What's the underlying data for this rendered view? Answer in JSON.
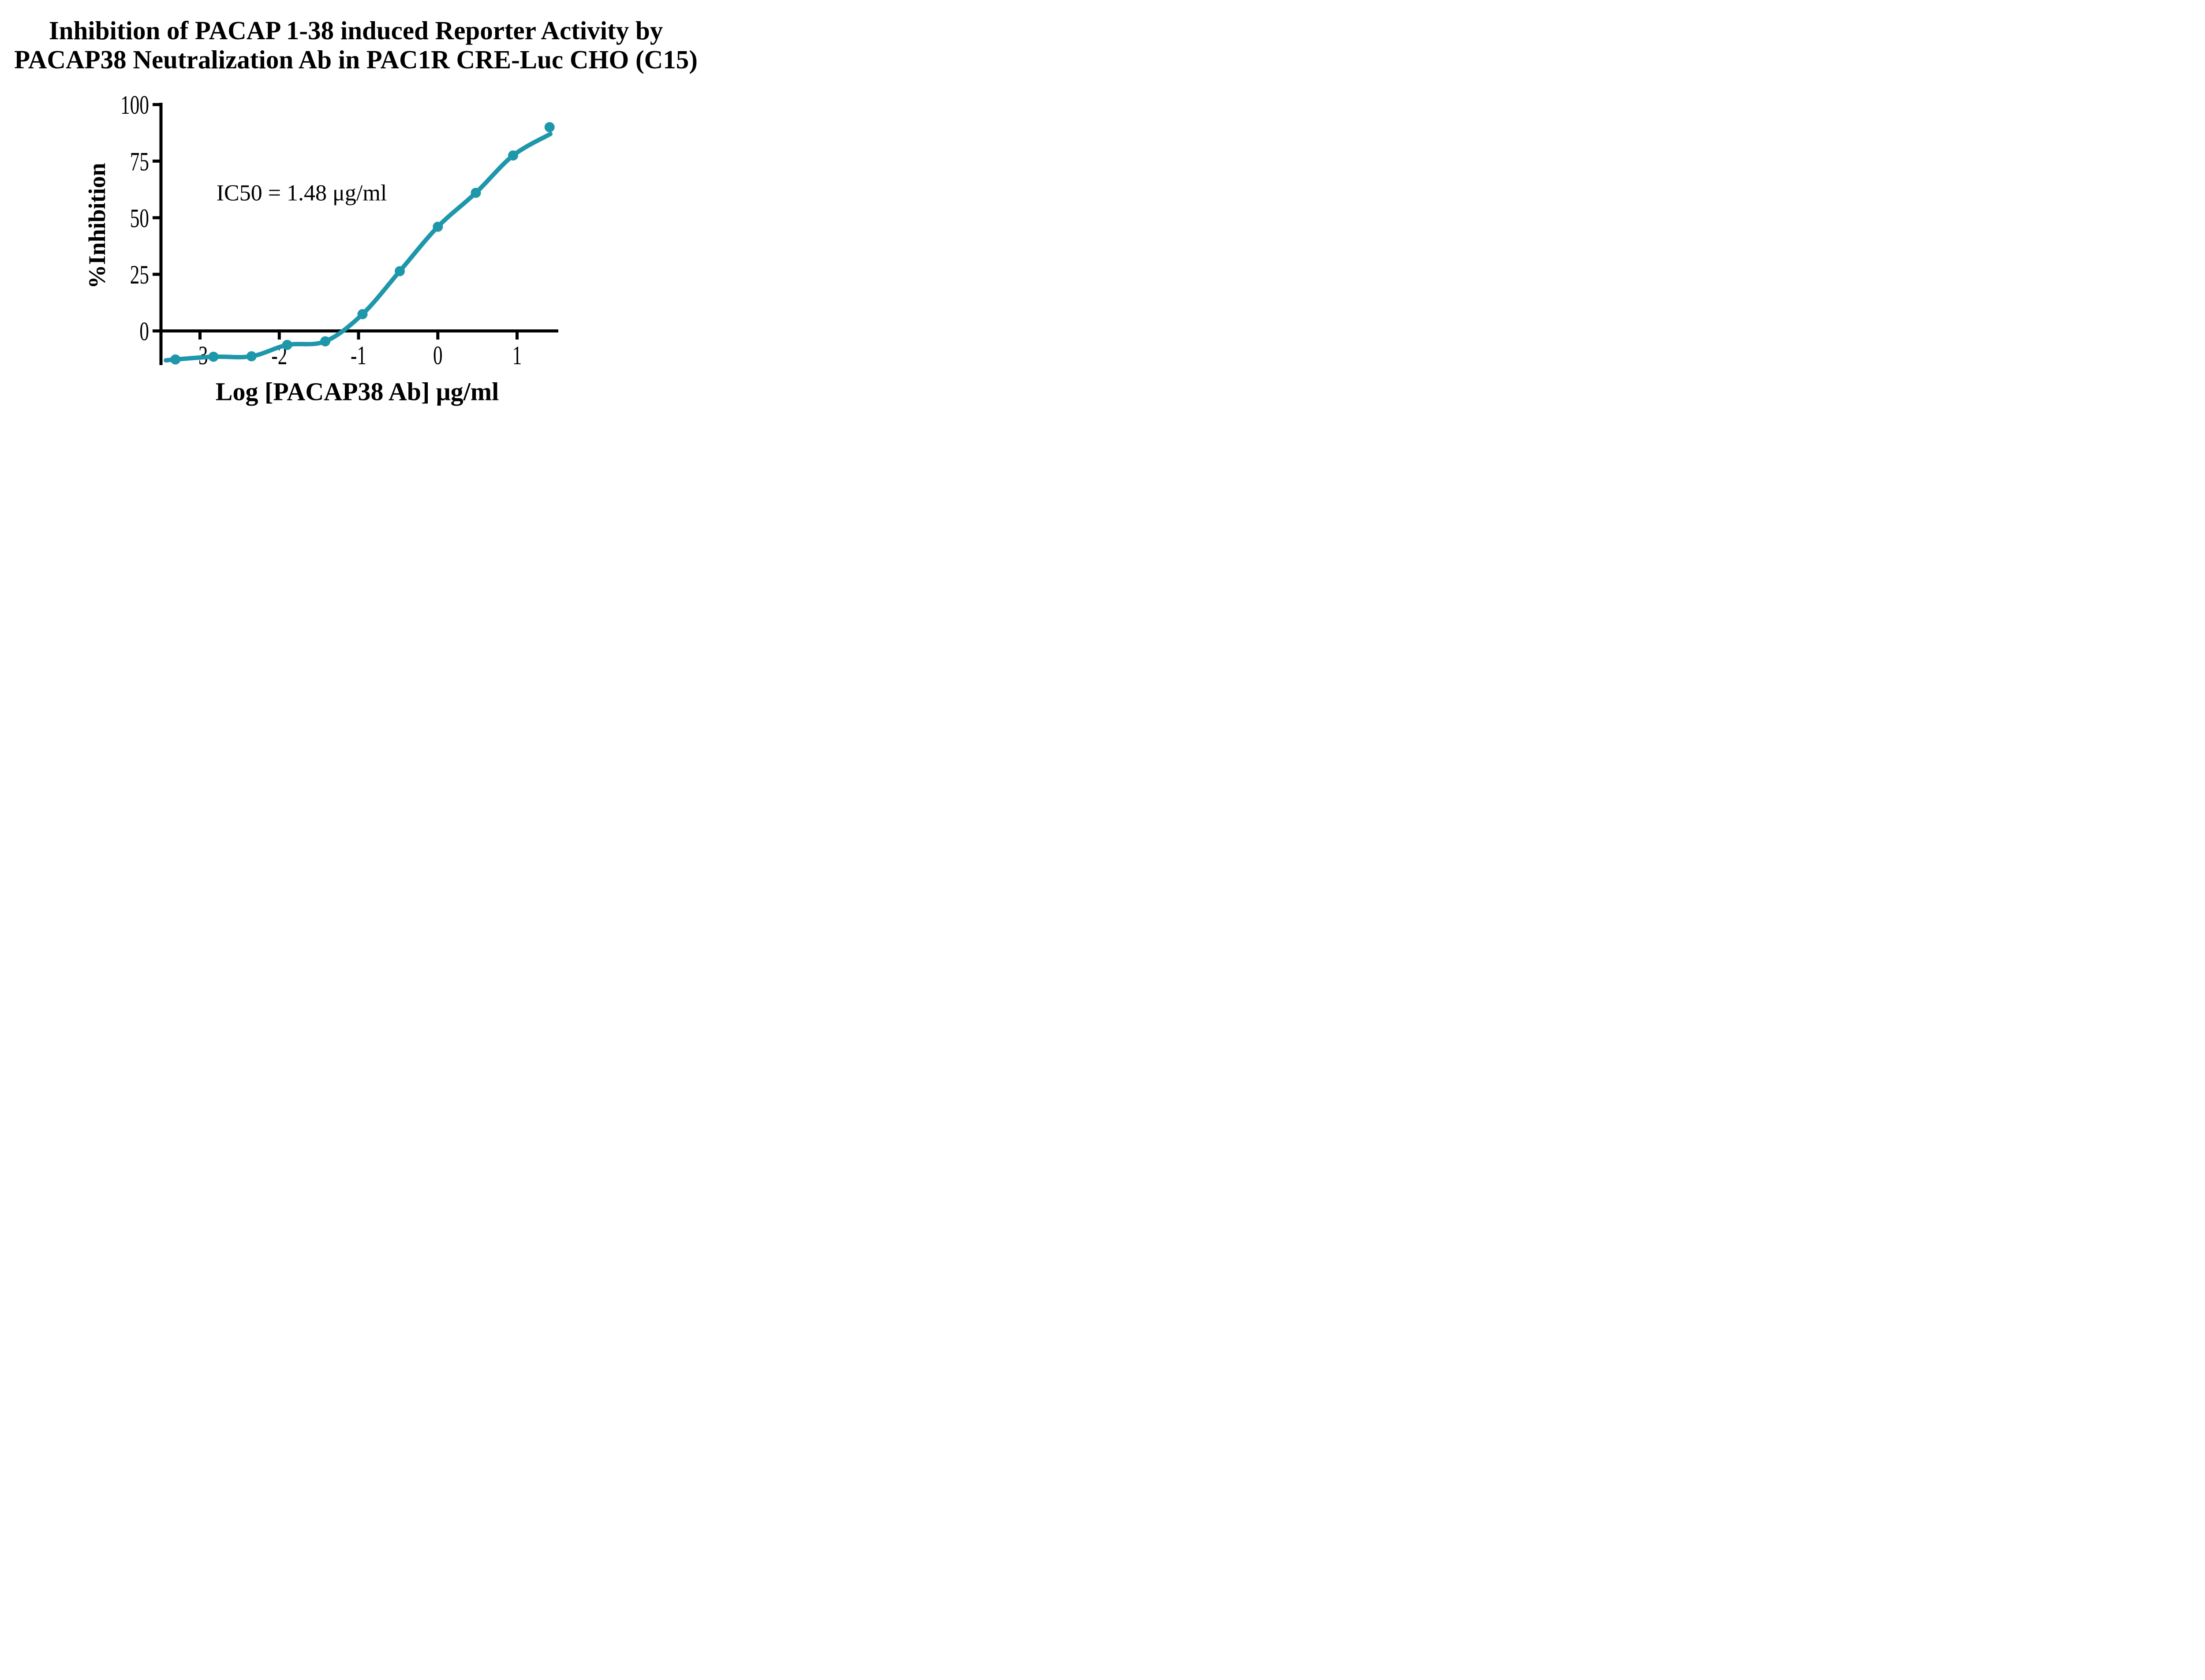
{
  "page": {
    "background": "#ffffff"
  },
  "title": {
    "line1": "Inhibition of PACAP 1-38 induced Reporter Activity by",
    "line2": "PACAP38 Neutralization Ab in PAC1R CRE-Luc CHO (C15)"
  },
  "annotation": {
    "text": "IC50 = 1.48 μg/ml"
  },
  "y_axis": {
    "label": "%Inhibition",
    "tick_labels": [
      "100",
      "75",
      "50",
      "25",
      "0"
    ],
    "tick_values": [
      100,
      75,
      50,
      25,
      0
    ]
  },
  "x_axis": {
    "label": "Log [PACAP38 Ab] μg/ml",
    "tick_labels": [
      "-3",
      "-2",
      "-1",
      "0",
      "1"
    ],
    "tick_values": [
      -3,
      -2,
      -1,
      0,
      1
    ]
  },
  "colors": {
    "series": "#1E97AB",
    "axis": "#000000",
    "text": "#000000",
    "background": "#ffffff"
  },
  "chart_data": {
    "type": "scatter",
    "title": "Inhibition of PACAP 1-38 induced Reporter Activity by PACAP38 Neutralization Ab in PAC1R CRE-Luc CHO (C15)",
    "xlabel": "Log [PACAP38 Ab] μg/ml",
    "ylabel": "%Inhibition",
    "annotation": "IC50 = 1.48 μg/ml",
    "ic50_ug_ml": 1.48,
    "x_ticks": [
      -3,
      -2,
      -1,
      0,
      1
    ],
    "y_ticks": [
      0,
      25,
      50,
      75,
      100
    ],
    "xlim": [
      -3.49,
      1.52
    ],
    "ylim": [
      -15,
      100
    ],
    "grid": false,
    "legend_position": "none",
    "series": [
      {
        "name": "PACAP38 Neutralization Ab",
        "marker": "circle",
        "color": "#1E97AB",
        "points": [
          {
            "x": -3.31,
            "y": -12.6
          },
          {
            "x": -2.83,
            "y": -11.4
          },
          {
            "x": -2.35,
            "y": -11.2
          },
          {
            "x": -1.9,
            "y": -6.2
          },
          {
            "x": -1.42,
            "y": -4.6
          },
          {
            "x": -0.95,
            "y": 7.4
          },
          {
            "x": -0.48,
            "y": 26.4
          },
          {
            "x": 0.0,
            "y": 46.0
          },
          {
            "x": 0.48,
            "y": 61.0
          },
          {
            "x": 0.95,
            "y": 77.5
          },
          {
            "x": 1.41,
            "y": 90.0
          }
        ],
        "fit": {
          "type": "sigmoidal dose-response (4PL)",
          "curve_start": {
            "x": -3.43,
            "y": -13.0
          },
          "curve_end": {
            "x": 1.42,
            "y": 87.0
          }
        }
      }
    ]
  }
}
